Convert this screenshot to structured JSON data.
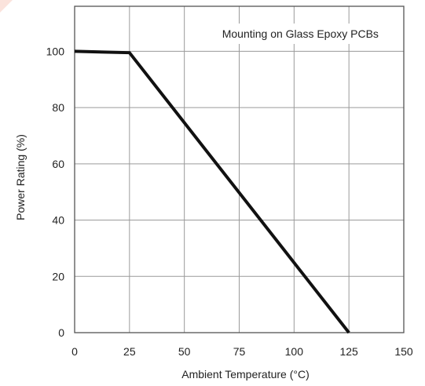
{
  "chart_data": {
    "type": "line",
    "annotation": "Mounting on Glass Epoxy PCBs",
    "xlabel": "Ambient Temperature (°C)",
    "ylabel": "Power Rating (%)",
    "xlim": [
      0,
      150
    ],
    "ylim": [
      0,
      116
    ],
    "x_ticks": [
      0,
      25,
      50,
      75,
      100,
      125,
      150
    ],
    "y_ticks": [
      0,
      20,
      40,
      60,
      80,
      100
    ],
    "grid": true,
    "line_color": "#111111",
    "series": [
      {
        "x": [
          0,
          25,
          125
        ],
        "y": [
          100,
          99.5,
          0
        ]
      }
    ]
  }
}
